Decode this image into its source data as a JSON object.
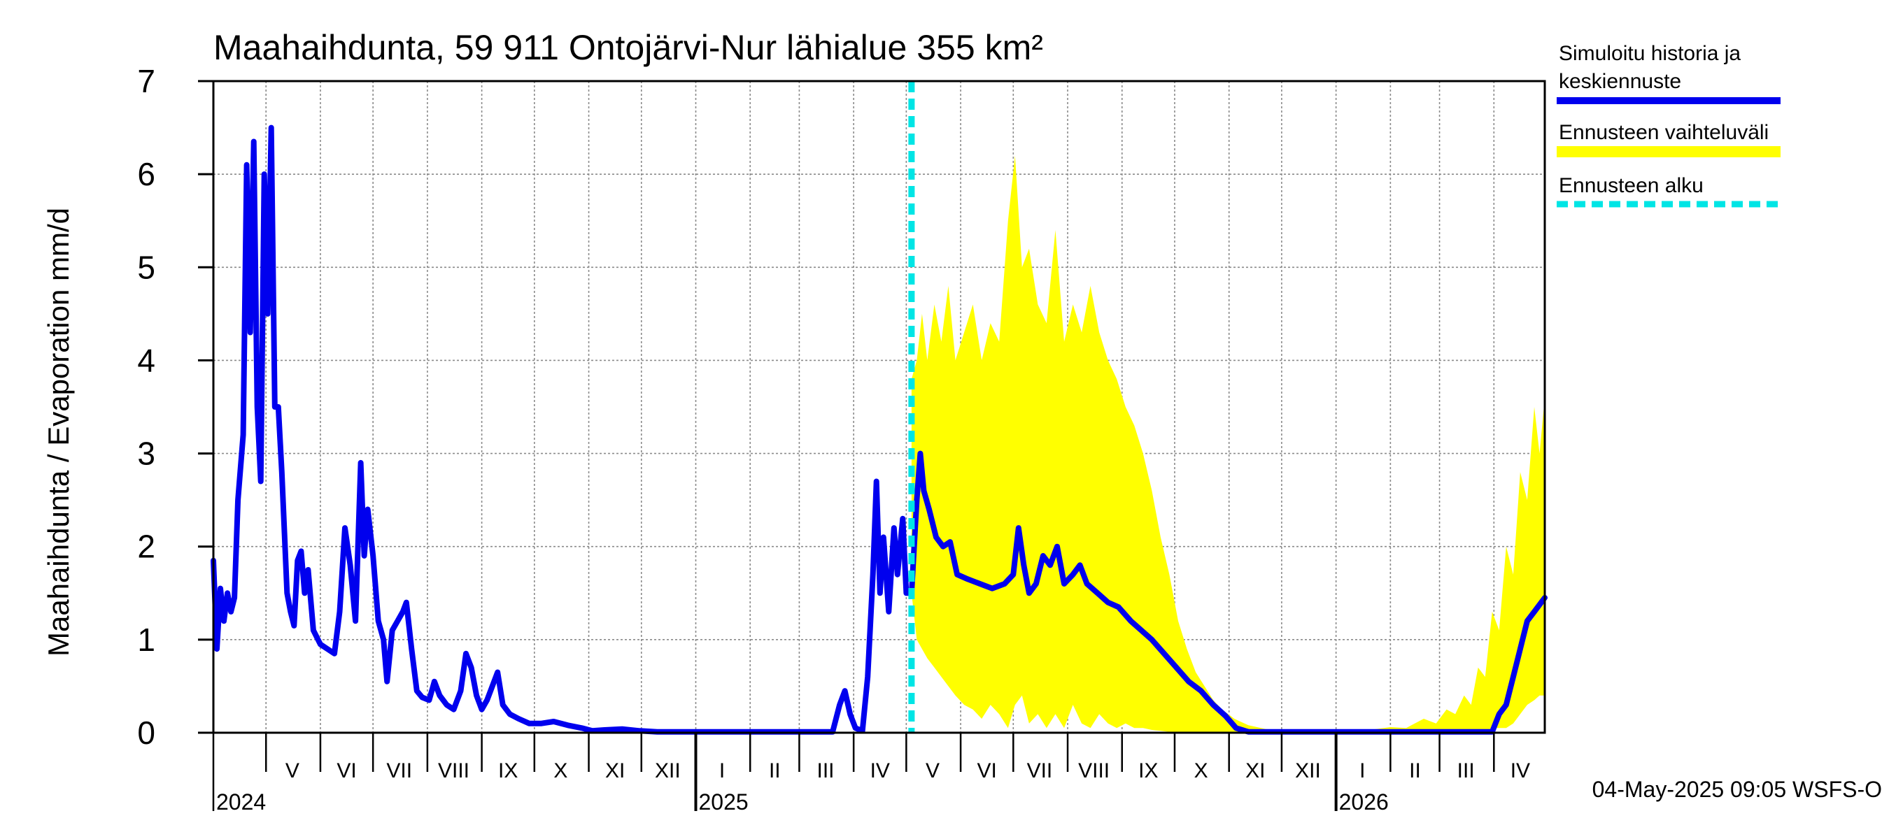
{
  "chart_data": {
    "type": "line",
    "title": "Maahaihdunta, 59 911 Ontojärvi-Nur lähialue 355 km²",
    "ylabel": "Maahaihdunta / Evaporation   mm/d",
    "ylim": [
      0,
      7
    ],
    "yticks": [
      "0",
      "1",
      "2",
      "3",
      "4",
      "5",
      "6",
      "7"
    ],
    "xlim": [
      "2024-04-01",
      "2026-04-30"
    ],
    "grid": true,
    "legend_position": "top-right-outside",
    "forecast_start": "2025-05-04",
    "month_labels": [
      {
        "label": "V",
        "date": "2024-05-16"
      },
      {
        "label": "VI",
        "date": "2024-06-16"
      },
      {
        "label": "VII",
        "date": "2024-07-16"
      },
      {
        "label": "VIII",
        "date": "2024-08-16"
      },
      {
        "label": "IX",
        "date": "2024-09-16"
      },
      {
        "label": "X",
        "date": "2024-10-16"
      },
      {
        "label": "XI",
        "date": "2024-11-16"
      },
      {
        "label": "XII",
        "date": "2024-12-16"
      },
      {
        "label": "I",
        "date": "2025-01-16"
      },
      {
        "label": "II",
        "date": "2025-02-15"
      },
      {
        "label": "III",
        "date": "2025-03-16"
      },
      {
        "label": "IV",
        "date": "2025-04-16"
      },
      {
        "label": "V",
        "date": "2025-05-16"
      },
      {
        "label": "VI",
        "date": "2025-06-16"
      },
      {
        "label": "VII",
        "date": "2025-07-16"
      },
      {
        "label": "VIII",
        "date": "2025-08-16"
      },
      {
        "label": "IX",
        "date": "2025-09-16"
      },
      {
        "label": "X",
        "date": "2025-10-16"
      },
      {
        "label": "XI",
        "date": "2025-11-16"
      },
      {
        "label": "XII",
        "date": "2025-12-16"
      },
      {
        "label": "I",
        "date": "2026-01-16"
      },
      {
        "label": "II",
        "date": "2026-02-15"
      },
      {
        "label": "III",
        "date": "2026-03-16"
      },
      {
        "label": "IV",
        "date": "2026-04-16"
      }
    ],
    "year_labels": [
      {
        "label": "2024",
        "date": "2024-04-01"
      },
      {
        "label": "2025",
        "date": "2025-01-01"
      },
      {
        "label": "2026",
        "date": "2026-01-01"
      }
    ],
    "series": [
      {
        "name": "Simuloitu historia ja keskiennuste",
        "color": "#0000ee",
        "points": [
          [
            "2024-04-01",
            1.85
          ],
          [
            "2024-04-03",
            0.9
          ],
          [
            "2024-04-05",
            1.55
          ],
          [
            "2024-04-07",
            1.2
          ],
          [
            "2024-04-09",
            1.5
          ],
          [
            "2024-04-11",
            1.3
          ],
          [
            "2024-04-13",
            1.45
          ],
          [
            "2024-04-15",
            2.5
          ],
          [
            "2024-04-18",
            3.2
          ],
          [
            "2024-04-20",
            6.1
          ],
          [
            "2024-04-22",
            4.3
          ],
          [
            "2024-04-24",
            6.35
          ],
          [
            "2024-04-26",
            3.5
          ],
          [
            "2024-04-28",
            2.7
          ],
          [
            "2024-04-30",
            6.0
          ],
          [
            "2024-05-02",
            4.5
          ],
          [
            "2024-05-04",
            6.5
          ],
          [
            "2024-05-06",
            3.5
          ],
          [
            "2024-05-08",
            3.5
          ],
          [
            "2024-05-10",
            2.8
          ],
          [
            "2024-05-13",
            1.5
          ],
          [
            "2024-05-15",
            1.3
          ],
          [
            "2024-05-17",
            1.15
          ],
          [
            "2024-05-19",
            1.85
          ],
          [
            "2024-05-21",
            1.95
          ],
          [
            "2024-05-23",
            1.5
          ],
          [
            "2024-05-25",
            1.75
          ],
          [
            "2024-05-28",
            1.1
          ],
          [
            "2024-06-01",
            0.95
          ],
          [
            "2024-06-05",
            0.9
          ],
          [
            "2024-06-09",
            0.85
          ],
          [
            "2024-06-12",
            1.3
          ],
          [
            "2024-06-15",
            2.2
          ],
          [
            "2024-06-18",
            1.8
          ],
          [
            "2024-06-21",
            1.2
          ],
          [
            "2024-06-24",
            2.9
          ],
          [
            "2024-06-26",
            1.9
          ],
          [
            "2024-06-28",
            2.4
          ],
          [
            "2024-07-01",
            1.9
          ],
          [
            "2024-07-04",
            1.2
          ],
          [
            "2024-07-07",
            1.0
          ],
          [
            "2024-07-09",
            0.55
          ],
          [
            "2024-07-12",
            1.1
          ],
          [
            "2024-07-15",
            1.2
          ],
          [
            "2024-07-18",
            1.3
          ],
          [
            "2024-07-20",
            1.4
          ],
          [
            "2024-07-23",
            0.9
          ],
          [
            "2024-07-26",
            0.45
          ],
          [
            "2024-07-29",
            0.38
          ],
          [
            "2024-08-02",
            0.35
          ],
          [
            "2024-08-05",
            0.55
          ],
          [
            "2024-08-08",
            0.4
          ],
          [
            "2024-08-12",
            0.3
          ],
          [
            "2024-08-16",
            0.25
          ],
          [
            "2024-08-20",
            0.45
          ],
          [
            "2024-08-23",
            0.85
          ],
          [
            "2024-08-26",
            0.7
          ],
          [
            "2024-08-29",
            0.4
          ],
          [
            "2024-09-01",
            0.25
          ],
          [
            "2024-09-04",
            0.35
          ],
          [
            "2024-09-07",
            0.5
          ],
          [
            "2024-09-10",
            0.65
          ],
          [
            "2024-09-13",
            0.3
          ],
          [
            "2024-09-17",
            0.2
          ],
          [
            "2024-09-22",
            0.15
          ],
          [
            "2024-09-28",
            0.1
          ],
          [
            "2024-10-05",
            0.1
          ],
          [
            "2024-10-12",
            0.12
          ],
          [
            "2024-10-20",
            0.08
          ],
          [
            "2024-10-28",
            0.05
          ],
          [
            "2024-11-03",
            0.02
          ],
          [
            "2024-11-10",
            0.03
          ],
          [
            "2024-11-20",
            0.04
          ],
          [
            "2024-11-30",
            0.02
          ],
          [
            "2024-12-10",
            0.01
          ],
          [
            "2025-01-01",
            0.01
          ],
          [
            "2025-02-01",
            0.01
          ],
          [
            "2025-03-01",
            0.01
          ],
          [
            "2025-03-20",
            0.01
          ],
          [
            "2025-03-24",
            0.3
          ],
          [
            "2025-03-27",
            0.45
          ],
          [
            "2025-03-30",
            0.2
          ],
          [
            "2025-04-02",
            0.05
          ],
          [
            "2025-04-06",
            0.02
          ],
          [
            "2025-04-09",
            0.6
          ],
          [
            "2025-04-12",
            1.7
          ],
          [
            "2025-04-14",
            2.7
          ],
          [
            "2025-04-16",
            1.5
          ],
          [
            "2025-04-18",
            2.1
          ],
          [
            "2025-04-21",
            1.3
          ],
          [
            "2025-04-24",
            2.2
          ],
          [
            "2025-04-26",
            1.7
          ],
          [
            "2025-04-29",
            2.3
          ],
          [
            "2025-05-01",
            1.5
          ],
          [
            "2025-05-04",
            1.5
          ],
          [
            "2025-05-07",
            2.5
          ],
          [
            "2025-05-09",
            3.0
          ],
          [
            "2025-05-11",
            2.6
          ],
          [
            "2025-05-14",
            2.4
          ],
          [
            "2025-05-18",
            2.1
          ],
          [
            "2025-05-22",
            2.0
          ],
          [
            "2025-05-26",
            2.05
          ],
          [
            "2025-05-30",
            1.7
          ],
          [
            "2025-06-05",
            1.65
          ],
          [
            "2025-06-12",
            1.6
          ],
          [
            "2025-06-19",
            1.55
          ],
          [
            "2025-06-26",
            1.6
          ],
          [
            "2025-07-01",
            1.7
          ],
          [
            "2025-07-04",
            2.2
          ],
          [
            "2025-07-07",
            1.8
          ],
          [
            "2025-07-10",
            1.5
          ],
          [
            "2025-07-14",
            1.6
          ],
          [
            "2025-07-18",
            1.9
          ],
          [
            "2025-07-22",
            1.8
          ],
          [
            "2025-07-26",
            2.0
          ],
          [
            "2025-07-30",
            1.6
          ],
          [
            "2025-08-04",
            1.7
          ],
          [
            "2025-08-08",
            1.8
          ],
          [
            "2025-08-12",
            1.6
          ],
          [
            "2025-08-18",
            1.5
          ],
          [
            "2025-08-24",
            1.4
          ],
          [
            "2025-08-30",
            1.35
          ],
          [
            "2025-09-06",
            1.2
          ],
          [
            "2025-09-12",
            1.1
          ],
          [
            "2025-09-18",
            1.0
          ],
          [
            "2025-09-25",
            0.85
          ],
          [
            "2025-10-02",
            0.7
          ],
          [
            "2025-10-09",
            0.55
          ],
          [
            "2025-10-16",
            0.45
          ],
          [
            "2025-10-23",
            0.3
          ],
          [
            "2025-10-30",
            0.18
          ],
          [
            "2025-11-05",
            0.05
          ],
          [
            "2025-11-12",
            0.01
          ],
          [
            "2025-12-01",
            0.01
          ],
          [
            "2026-01-01",
            0.01
          ],
          [
            "2026-02-01",
            0.01
          ],
          [
            "2026-03-01",
            0.01
          ],
          [
            "2026-03-31",
            0.01
          ],
          [
            "2026-04-04",
            0.2
          ],
          [
            "2026-04-08",
            0.3
          ],
          [
            "2026-04-12",
            0.6
          ],
          [
            "2026-04-16",
            0.9
          ],
          [
            "2026-04-20",
            1.2
          ],
          [
            "2026-04-24",
            1.3
          ],
          [
            "2026-04-30",
            1.45
          ]
        ]
      },
      {
        "name": "Ennusteen vaihteluväli",
        "color": "#ffff00",
        "band": [
          [
            "2025-05-04",
            1.5,
            3.8
          ],
          [
            "2025-05-07",
            1.0,
            4.0
          ],
          [
            "2025-05-10",
            0.9,
            4.5
          ],
          [
            "2025-05-13",
            0.8,
            4.0
          ],
          [
            "2025-05-17",
            0.7,
            4.6
          ],
          [
            "2025-05-21",
            0.6,
            4.2
          ],
          [
            "2025-05-25",
            0.5,
            4.8
          ],
          [
            "2025-05-29",
            0.4,
            4.0
          ],
          [
            "2025-06-03",
            0.3,
            4.3
          ],
          [
            "2025-06-08",
            0.25,
            4.6
          ],
          [
            "2025-06-13",
            0.15,
            4.0
          ],
          [
            "2025-06-18",
            0.3,
            4.4
          ],
          [
            "2025-06-23",
            0.2,
            4.2
          ],
          [
            "2025-06-28",
            0.05,
            5.5
          ],
          [
            "2025-07-02",
            0.3,
            6.2
          ],
          [
            "2025-07-06",
            0.4,
            5.0
          ],
          [
            "2025-07-10",
            0.1,
            5.2
          ],
          [
            "2025-07-15",
            0.2,
            4.6
          ],
          [
            "2025-07-20",
            0.05,
            4.4
          ],
          [
            "2025-07-25",
            0.2,
            5.4
          ],
          [
            "2025-07-30",
            0.05,
            4.2
          ],
          [
            "2025-08-04",
            0.3,
            4.6
          ],
          [
            "2025-08-09",
            0.1,
            4.3
          ],
          [
            "2025-08-14",
            0.05,
            4.8
          ],
          [
            "2025-08-19",
            0.2,
            4.3
          ],
          [
            "2025-08-24",
            0.1,
            4.0
          ],
          [
            "2025-08-29",
            0.05,
            3.8
          ],
          [
            "2025-09-03",
            0.1,
            3.5
          ],
          [
            "2025-09-08",
            0.05,
            3.3
          ],
          [
            "2025-09-13",
            0.05,
            3.0
          ],
          [
            "2025-09-18",
            0.03,
            2.6
          ],
          [
            "2025-09-23",
            0.02,
            2.1
          ],
          [
            "2025-09-28",
            0.01,
            1.7
          ],
          [
            "2025-10-03",
            0.01,
            1.2
          ],
          [
            "2025-10-08",
            0.01,
            0.9
          ],
          [
            "2025-10-13",
            0.01,
            0.65
          ],
          [
            "2025-10-18",
            0.01,
            0.5
          ],
          [
            "2025-10-23",
            0.01,
            0.35
          ],
          [
            "2025-10-28",
            0.01,
            0.25
          ],
          [
            "2025-11-04",
            0.01,
            0.15
          ],
          [
            "2025-11-12",
            0.01,
            0.08
          ],
          [
            "2025-11-22",
            0.01,
            0.04
          ],
          [
            "2025-12-05",
            0.01,
            0.02
          ],
          [
            "2026-01-01",
            0.01,
            0.02
          ],
          [
            "2026-01-20",
            0.01,
            0.03
          ],
          [
            "2026-02-01",
            0.01,
            0.06
          ],
          [
            "2026-02-10",
            0.01,
            0.05
          ],
          [
            "2026-02-20",
            0.01,
            0.15
          ],
          [
            "2026-02-27",
            0.01,
            0.1
          ],
          [
            "2026-03-05",
            0.01,
            0.25
          ],
          [
            "2026-03-10",
            0.01,
            0.2
          ],
          [
            "2026-03-15",
            0.01,
            0.4
          ],
          [
            "2026-03-19",
            0.01,
            0.3
          ],
          [
            "2026-03-23",
            0.01,
            0.7
          ],
          [
            "2026-03-27",
            0.01,
            0.6
          ],
          [
            "2026-03-31",
            0.05,
            1.3
          ],
          [
            "2026-04-04",
            0.05,
            1.1
          ],
          [
            "2026-04-08",
            0.05,
            2.0
          ],
          [
            "2026-04-12",
            0.1,
            1.7
          ],
          [
            "2026-04-16",
            0.2,
            2.8
          ],
          [
            "2026-04-20",
            0.3,
            2.5
          ],
          [
            "2026-04-24",
            0.35,
            3.5
          ],
          [
            "2026-04-27",
            0.4,
            3.0
          ],
          [
            "2026-04-30",
            0.4,
            3.6
          ]
        ]
      },
      {
        "name": "Ennusteen alku",
        "color": "#00e5e5"
      }
    ]
  },
  "footer": "04-May-2025 09:05 WSFS-O"
}
